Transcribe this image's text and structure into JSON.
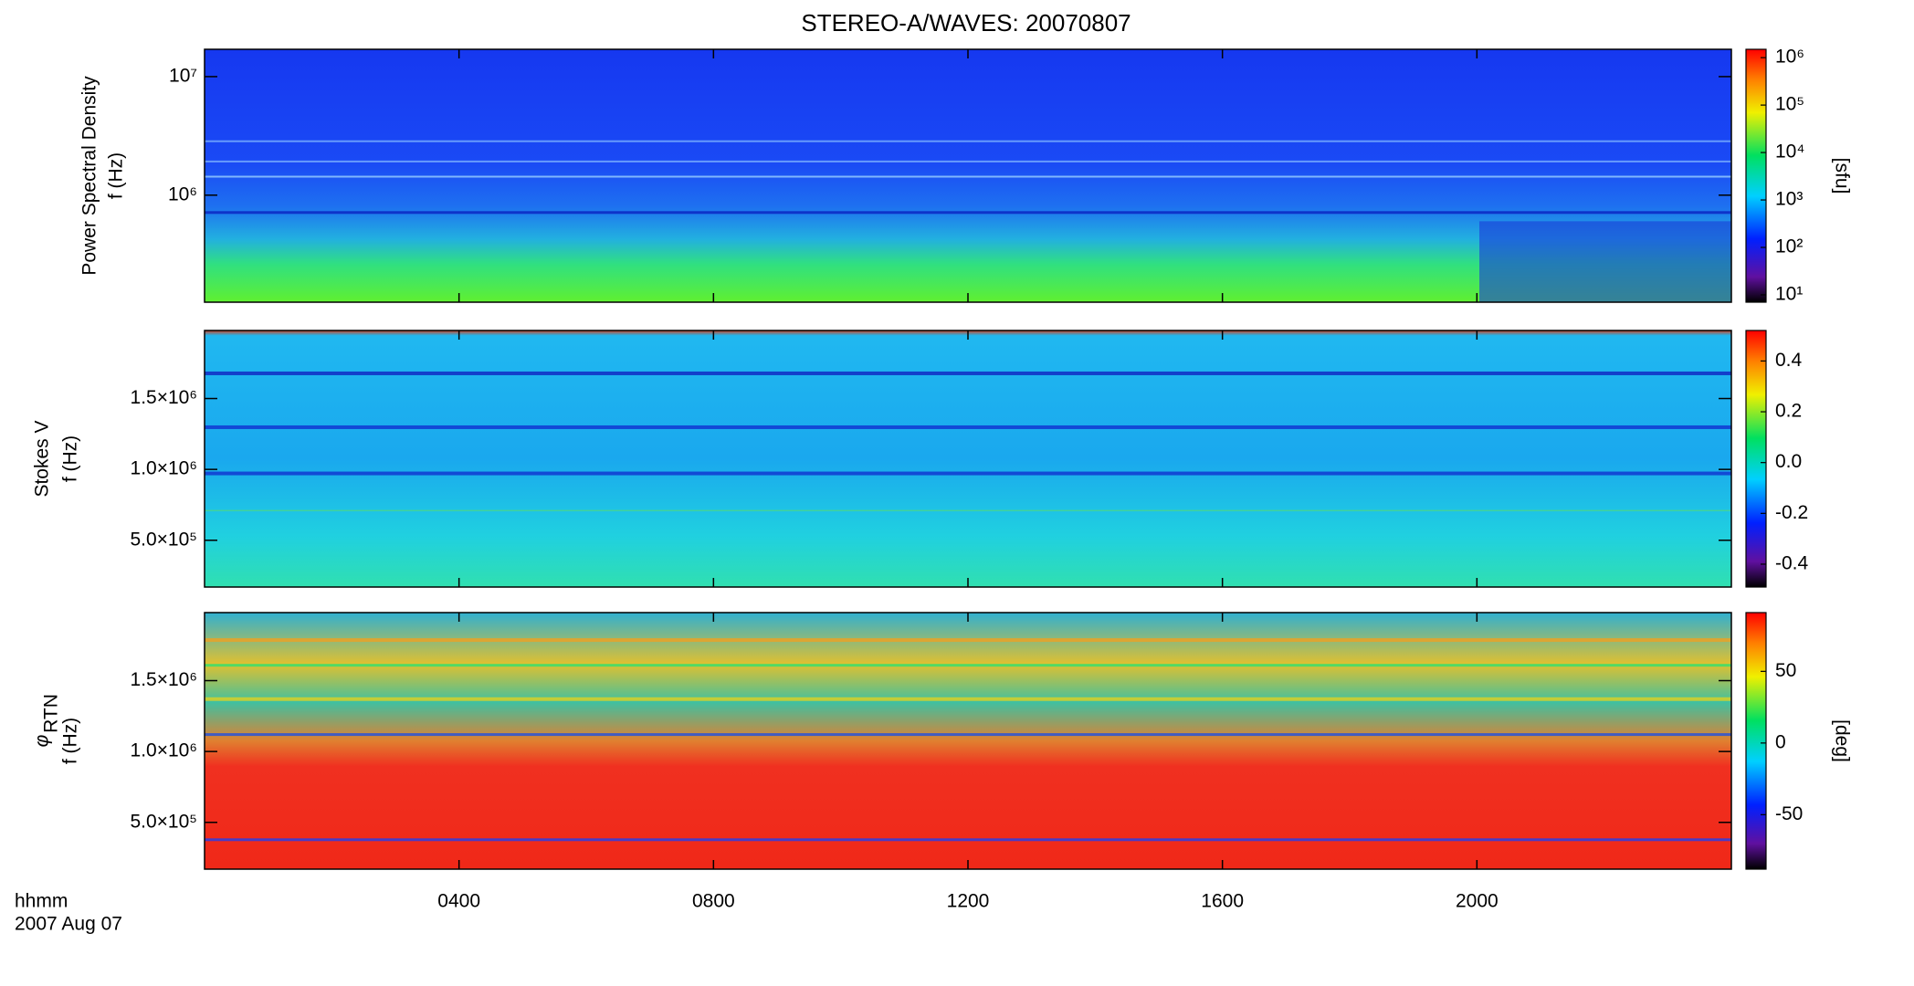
{
  "chart_data": [
    {
      "type": "heatmap",
      "title": "STEREO-A/WAVES: 20070807",
      "ylabel": "Power Spectral Density",
      "yunit": "f (Hz)",
      "ylog": true,
      "ylim": [
        125000,
        17000000
      ],
      "yticks": [
        {
          "value": 1000000,
          "label": "10⁶"
        },
        {
          "value": 10000000,
          "label": "10⁷"
        }
      ],
      "colorbar": {
        "log": true,
        "clim": [
          7,
          1500000
        ],
        "ticks": [
          {
            "value": 10,
            "label": "10¹"
          },
          {
            "value": 100,
            "label": "10²"
          },
          {
            "value": 1000,
            "label": "10³"
          },
          {
            "value": 10000,
            "label": "10⁴"
          },
          {
            "value": 100000,
            "label": "10⁵"
          },
          {
            "value": 1000000,
            "label": "10⁶"
          }
        ],
        "label": "[sfu]"
      }
    },
    {
      "type": "heatmap",
      "ylabel": "Stokes V",
      "yunit": "f (Hz)",
      "ylog": false,
      "ylim": [
        170000,
        1980000
      ],
      "yticks": [
        {
          "value": 500000,
          "label": "5.0×10⁵"
        },
        {
          "value": 1000000,
          "label": "1.0×10⁶"
        },
        {
          "value": 1500000,
          "label": "1.5×10⁶"
        }
      ],
      "colorbar": {
        "log": false,
        "clim": [
          -0.49,
          0.52
        ],
        "ticks": [
          -0.4,
          -0.2,
          {
            "value": 0,
            "label": "0.0"
          },
          0.2,
          0.4
        ]
      }
    },
    {
      "type": "heatmap",
      "ylabel": "φ",
      "ylabel_sub": "RTN",
      "yunit": "f (Hz)",
      "ylog": false,
      "ylim": [
        170000,
        1980000
      ],
      "yticks": [
        {
          "value": 500000,
          "label": "5.0×10⁵"
        },
        {
          "value": 1000000,
          "label": "1.0×10⁶"
        },
        {
          "value": 1500000,
          "label": "1.5×10⁶"
        }
      ],
      "colorbar": {
        "log": false,
        "clim": [
          -88,
          91
        ],
        "ticks": [
          -50,
          0,
          50
        ],
        "label": "[deg]"
      },
      "xlim": [
        0,
        24
      ],
      "xticks": [
        {
          "value": 4,
          "label": "0400"
        },
        {
          "value": 8,
          "label": "0800"
        },
        {
          "value": 12,
          "label": "1200"
        },
        {
          "value": 16,
          "label": "1600"
        },
        {
          "value": 20,
          "label": "2000"
        }
      ],
      "xlabel": "hhmm",
      "date": "2007 Aug 07"
    }
  ]
}
